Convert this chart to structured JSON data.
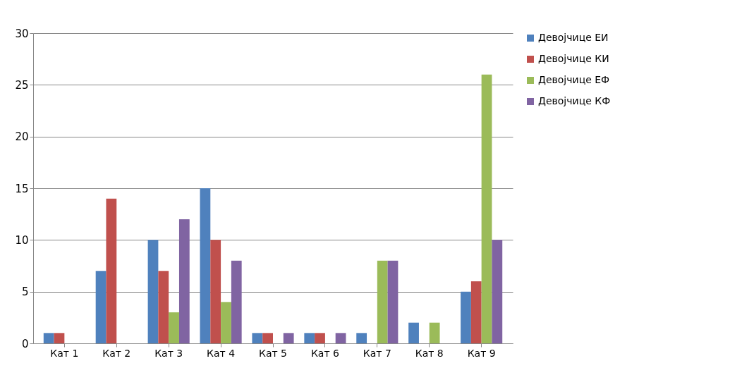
{
  "chart_data": {
    "type": "bar",
    "categories": [
      "Кат 1",
      "Кат 2",
      "Кат 3",
      "Кат 4",
      "Кат 5",
      "Кат 6",
      "Кат 7",
      "Кат 8",
      "Кат 9"
    ],
    "series": [
      {
        "name": "Девојчице ЕИ",
        "color": "#4f81bd",
        "values": [
          1,
          7,
          10,
          15,
          1,
          1,
          1,
          2,
          5
        ]
      },
      {
        "name": "Девојчице КИ",
        "color": "#c0504d",
        "values": [
          1,
          14,
          7,
          10,
          1,
          1,
          0,
          0,
          6
        ]
      },
      {
        "name": "Девојчице ЕФ",
        "color": "#9bbb59",
        "values": [
          0,
          0,
          3,
          4,
          0,
          0,
          8,
          2,
          26
        ]
      },
      {
        "name": "Девојчице КФ",
        "color": "#8064a2",
        "values": [
          0,
          0,
          12,
          8,
          1,
          1,
          8,
          0,
          10
        ]
      }
    ],
    "ylim": [
      0,
      30
    ],
    "yticks": [
      0,
      5,
      10,
      15,
      20,
      25,
      30
    ],
    "grid": "y",
    "legend": "right"
  }
}
